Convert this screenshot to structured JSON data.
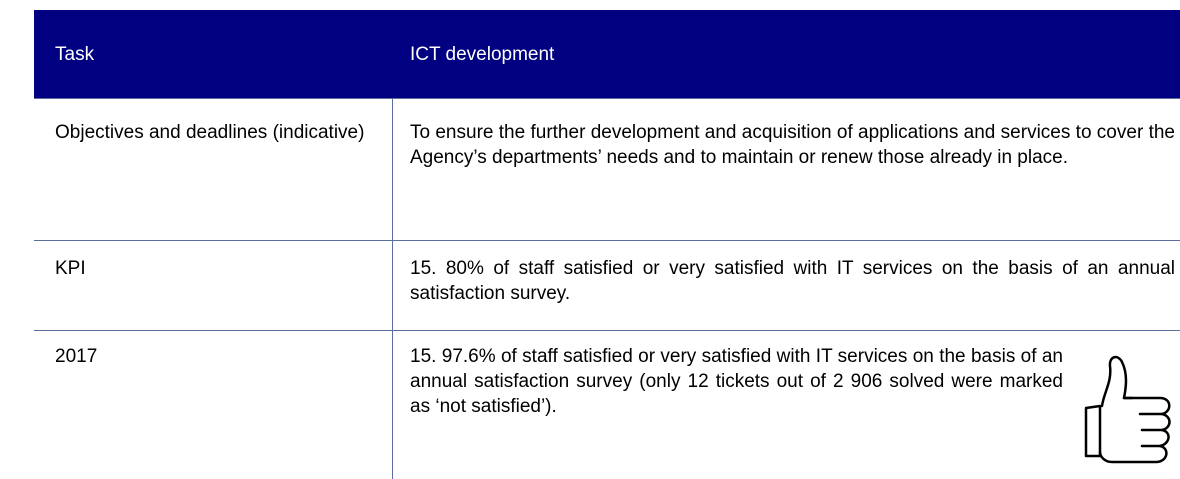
{
  "header": {
    "task_label": "Task",
    "task_value": "ICT development"
  },
  "rows": [
    [
      "Objectives and deadlines (indicative)",
      "To ensure the further development and acquisition of applications and services to cover the Agency’s departments’ needs and to maintain or renew those already in place."
    ],
    [
      "KPI",
      "15. 80% of staff satisfied or very satisfied with IT services on the basis of an annual satisfaction survey."
    ],
    [
      "2017",
      "15. 97.6% of staff satisfied or very satisfied with IT services on the basis of an annual satisfaction survey (only 12 tickets out of 2 906 solved were marked as ‘not satisfied’)."
    ]
  ]
}
